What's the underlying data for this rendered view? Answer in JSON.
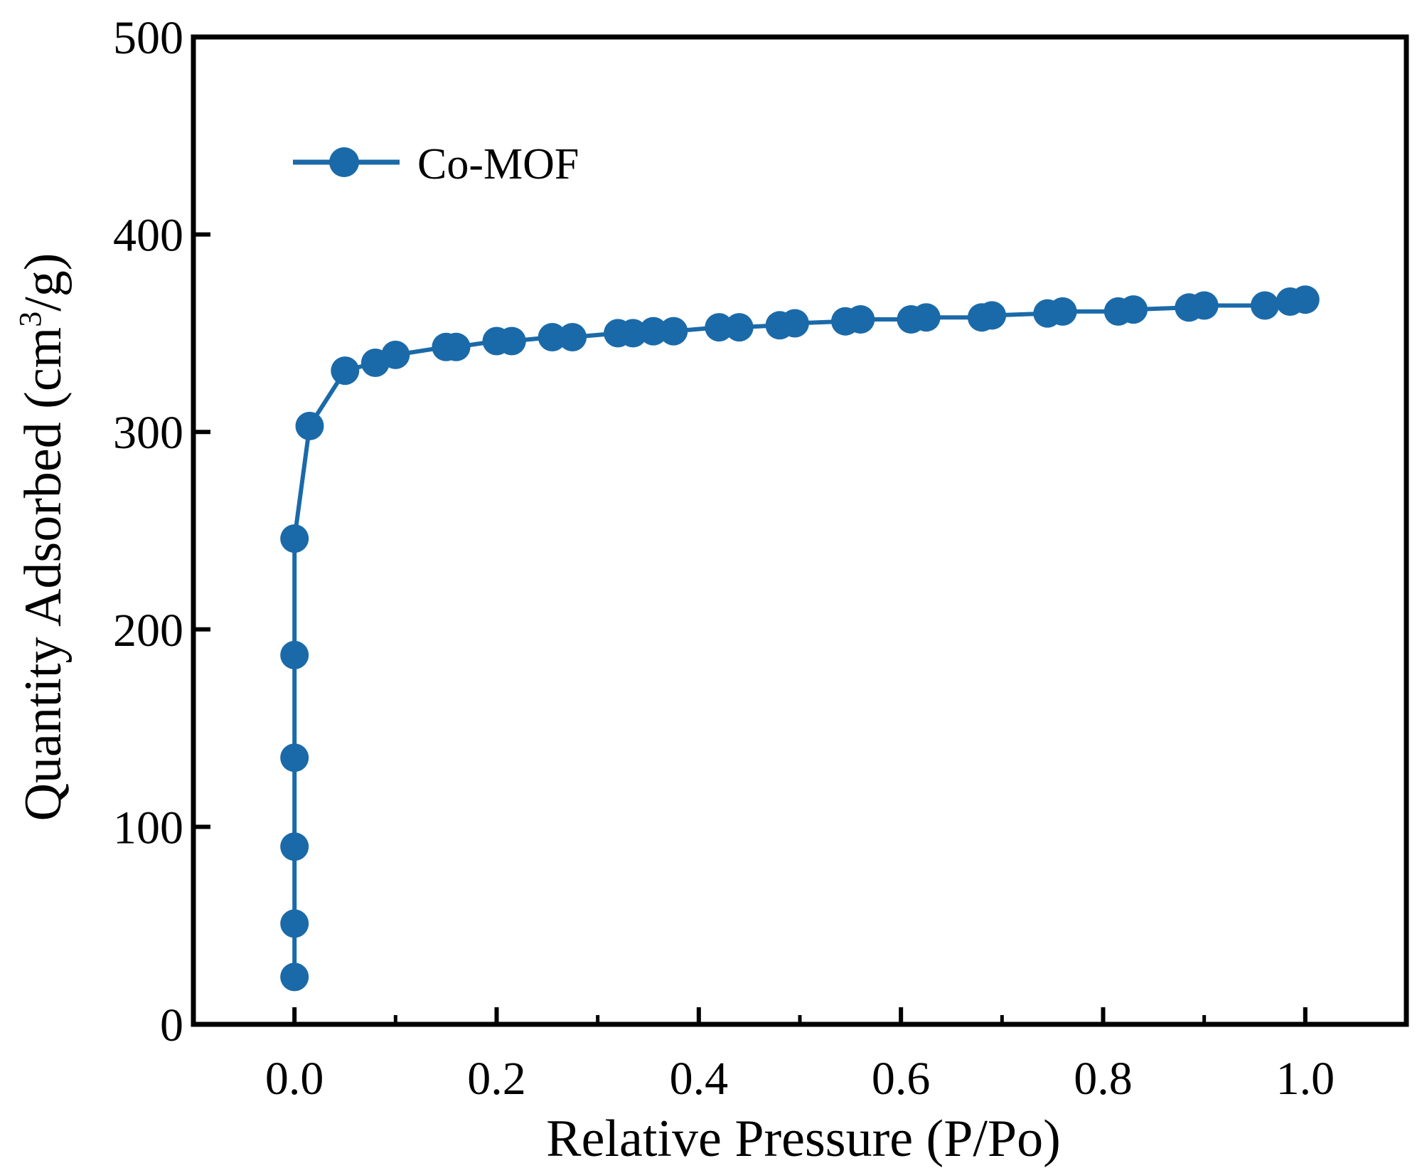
{
  "colors": {
    "series": "#1a6aa9",
    "axis": "#000000",
    "background": "#ffffff"
  },
  "chart_data": {
    "type": "line",
    "title": "",
    "xlabel": "Relative Pressure (P/Po)",
    "ylabel_main": "Quantity Adsorbed (cm",
    "ylabel_sup": "3",
    "ylabel_tail": "/g)",
    "xlim": [
      -0.1,
      1.1
    ],
    "ylim": [
      0,
      500
    ],
    "xticks": [
      0.0,
      0.2,
      0.4,
      0.6,
      0.8,
      1.0
    ],
    "xtick_labels": [
      "0.0",
      "0.2",
      "0.4",
      "0.6",
      "0.8",
      "1.0"
    ],
    "yticks": [
      0,
      100,
      200,
      300,
      400,
      500
    ],
    "ytick_labels": [
      "0",
      "100",
      "200",
      "300",
      "400",
      "500"
    ],
    "legend_position": "top-left",
    "grid": false,
    "series": [
      {
        "name": "Co-MOF",
        "marker": "circle",
        "x": [
          0.0,
          0.0,
          0.0,
          0.0,
          0.0,
          0.0,
          0.015,
          0.05,
          0.08,
          0.1,
          0.15,
          0.16,
          0.2,
          0.215,
          0.255,
          0.275,
          0.32,
          0.335,
          0.355,
          0.375,
          0.42,
          0.44,
          0.48,
          0.495,
          0.545,
          0.56,
          0.61,
          0.625,
          0.68,
          0.69,
          0.745,
          0.76,
          0.815,
          0.83,
          0.885,
          0.9,
          0.96,
          0.985,
          1.0
        ],
        "y": [
          24,
          51,
          90,
          135,
          187,
          246,
          303,
          331,
          335,
          339,
          343,
          343,
          346,
          346,
          348,
          348,
          350,
          350,
          351,
          351,
          353,
          353,
          354,
          355,
          356,
          357,
          357,
          358,
          358,
          359,
          360,
          361,
          361,
          362,
          363,
          364,
          364,
          366,
          367
        ]
      }
    ]
  }
}
